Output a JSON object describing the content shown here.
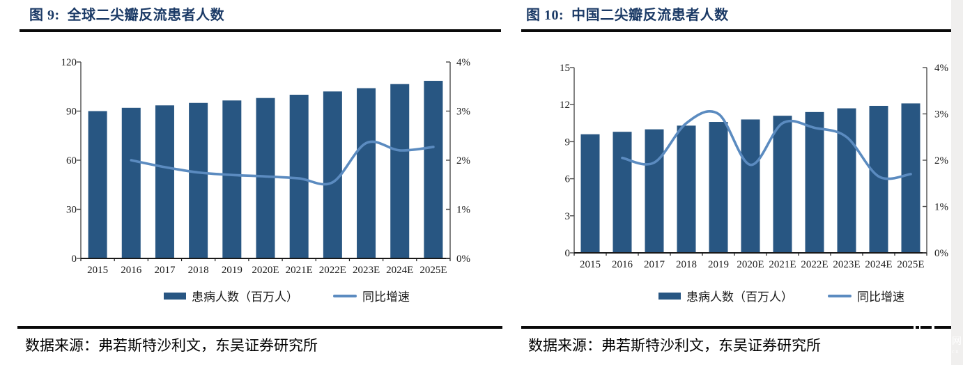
{
  "page": {
    "background": "#ffffff",
    "side_strip_color": "#f0efee",
    "watermark": {
      "glyph": "网",
      "sub": "cn"
    }
  },
  "colors": {
    "bar": "#285682",
    "line": "#5B8BC0",
    "title": "#1B3A66",
    "rule": "#0a0a0a",
    "axis": "#4d4d4d",
    "x_axis": "#1a1a1a",
    "text": "#1a1a1a"
  },
  "figures": [
    {
      "title": "图 9:  全球二尖瓣反流患者人数",
      "source": "数据来源：弗若斯特沙利文，东吴证券研究所",
      "legend": {
        "bar": "患病人数（百万人）",
        "line": "同比增速"
      },
      "chart_data": {
        "type": "bar+line",
        "title": "全球二尖瓣反流患者人数",
        "categories": [
          "2015",
          "2016",
          "2017",
          "2018",
          "2019",
          "2020E",
          "2021E",
          "2022E",
          "2023E",
          "2024E",
          "2025E"
        ],
        "series": [
          {
            "name": "患病人数（百万人）",
            "type": "bar",
            "axis": "left",
            "unit": "百万人",
            "values": [
              90,
              92,
              93.5,
              95,
              96.5,
              98,
              100,
              102,
              104,
              106.5,
              108.5
            ]
          },
          {
            "name": "同比增速",
            "type": "line",
            "axis": "right",
            "unit": "%",
            "values": [
              null,
              2.0,
              1.86,
              1.75,
              1.7,
              1.67,
              1.63,
              1.55,
              2.35,
              2.2,
              2.27
            ]
          }
        ],
        "left_axis": {
          "min": 0,
          "max": 120,
          "tick_step": 30,
          "tick_labels": [
            "0",
            "30",
            "60",
            "90",
            "120"
          ]
        },
        "right_axis": {
          "min": 0,
          "max": 4,
          "tick_step": 1,
          "tick_labels": [
            "0%",
            "1%",
            "2%",
            "3%",
            "4%"
          ]
        },
        "grid": false,
        "legend_position": "bottom"
      }
    },
    {
      "title": "图 10:  中国二尖瓣反流患者人数",
      "source": "数据来源：弗若斯特沙利文，东吴证券研究所",
      "legend": {
        "bar": "患病人数（百万人）",
        "line": "同比增速"
      },
      "chart_data": {
        "type": "bar+line",
        "title": "中国二尖瓣反流患者人数",
        "categories": [
          "2015",
          "2016",
          "2017",
          "2018",
          "2019",
          "2020E",
          "2021E",
          "2022E",
          "2023E",
          "2024E",
          "2025E"
        ],
        "series": [
          {
            "name": "患病人数（百万人）",
            "type": "bar",
            "axis": "left",
            "unit": "百万人",
            "values": [
              9.6,
              9.8,
              10.0,
              10.3,
              10.6,
              10.8,
              11.1,
              11.4,
              11.7,
              11.9,
              12.1
            ]
          },
          {
            "name": "同比增速",
            "type": "line",
            "axis": "right",
            "unit": "%",
            "values": [
              null,
              2.05,
              1.95,
              2.8,
              3.0,
              1.9,
              2.8,
              2.7,
              2.5,
              1.65,
              1.7
            ]
          }
        ],
        "left_axis": {
          "min": 0,
          "max": 15,
          "tick_step": 3,
          "tick_labels": [
            "0",
            "3",
            "6",
            "9",
            "12",
            "15"
          ]
        },
        "right_axis": {
          "min": 0,
          "max": 4,
          "tick_step": 1,
          "tick_labels": [
            "0%",
            "1%",
            "2%",
            "3%",
            "4%"
          ]
        },
        "grid": false,
        "legend_position": "bottom"
      }
    }
  ]
}
